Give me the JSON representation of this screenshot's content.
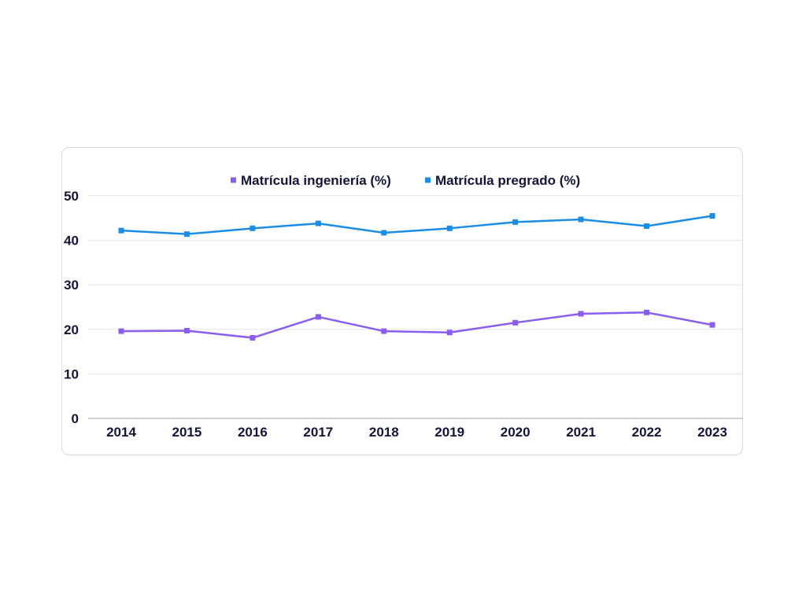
{
  "chart_data": {
    "type": "line",
    "title": "",
    "xlabel": "",
    "ylabel": "",
    "categories": [
      "2014",
      "2015",
      "2016",
      "2017",
      "2018",
      "2019",
      "2020",
      "2021",
      "2022",
      "2023"
    ],
    "ylim": [
      0,
      50
    ],
    "yticks": [
      "0",
      "10",
      "20",
      "30",
      "40",
      "50"
    ],
    "grid": true,
    "legend_position": "top-center",
    "series": [
      {
        "name": "Matrícula ingeniería (%)",
        "color": "#8b5cf0",
        "values": [
          19.6,
          19.7,
          18.1,
          22.8,
          19.6,
          19.3,
          21.5,
          23.5,
          23.8,
          21.0
        ]
      },
      {
        "name": "Matrícula pregrado (%)",
        "color": "#1b8de6",
        "values": [
          42.2,
          41.4,
          42.7,
          43.8,
          41.7,
          42.7,
          44.1,
          44.7,
          43.2,
          45.5
        ]
      }
    ]
  }
}
